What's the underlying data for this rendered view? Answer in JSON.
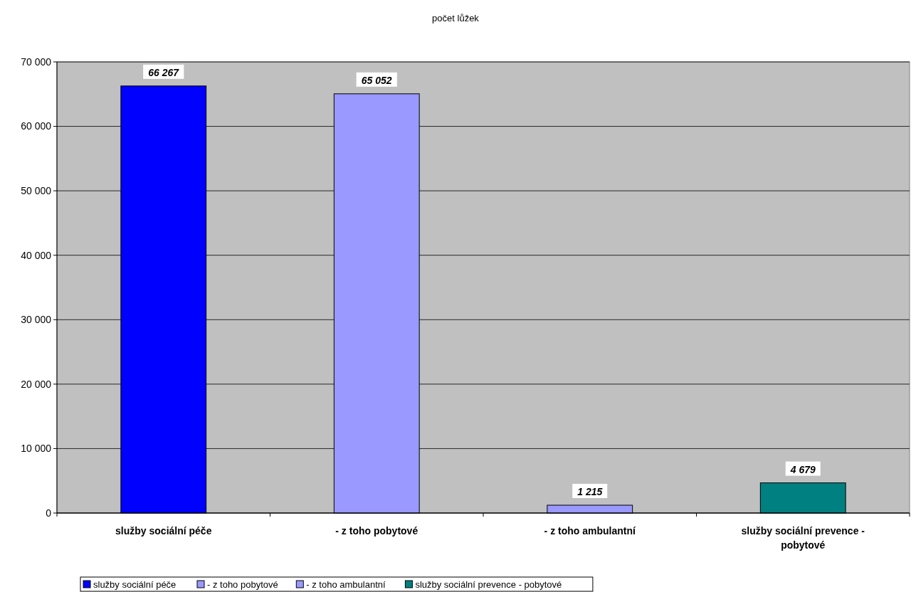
{
  "chart_data": {
    "type": "bar",
    "title": "počet lůžek",
    "categories": [
      "služby sociální péče",
      "- z toho pobytové",
      "- z toho ambulantní",
      "služby sociální prevence - pobytové"
    ],
    "series": [
      {
        "name": "služby sociální péče",
        "color": "#0000ff",
        "values": [
          66267,
          null,
          null,
          null
        ],
        "value_labels": [
          "66 267",
          null,
          null,
          null
        ]
      },
      {
        "name": "- z toho pobytové",
        "color": "#9999ff",
        "values": [
          null,
          65052,
          null,
          null
        ],
        "value_labels": [
          null,
          "65 052",
          null,
          null
        ]
      },
      {
        "name": "- z toho ambulantní",
        "color": "#9999ff",
        "values": [
          null,
          null,
          1215,
          null
        ],
        "value_labels": [
          null,
          null,
          "1 215",
          null
        ]
      },
      {
        "name": "služby sociální prevence - pobytové",
        "color": "#008080",
        "values": [
          null,
          null,
          null,
          4679
        ],
        "value_labels": [
          null,
          null,
          null,
          "4 679"
        ]
      }
    ],
    "ylim": [
      0,
      70000
    ],
    "yticks": [
      {
        "value": 0,
        "label": "0"
      },
      {
        "value": 10000,
        "label": "10 000"
      },
      {
        "value": 20000,
        "label": "20 000"
      },
      {
        "value": 30000,
        "label": "30 000"
      },
      {
        "value": 40000,
        "label": "40 000"
      },
      {
        "value": 50000,
        "label": "50 000"
      },
      {
        "value": 60000,
        "label": "60 000"
      },
      {
        "value": 70000,
        "label": "70 000"
      }
    ],
    "grid": "y",
    "legend": "bottom left"
  }
}
